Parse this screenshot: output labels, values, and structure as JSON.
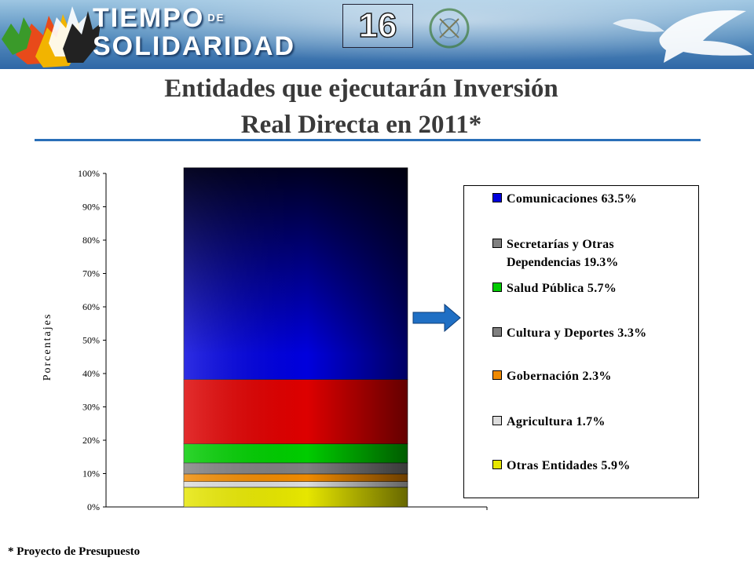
{
  "header": {
    "logo_line1": "TIEMPO",
    "logo_de": "DE",
    "logo_line2": "SOLIDARIDAD",
    "slide_number": "16"
  },
  "title_line1": "Entidades que ejecutarán  Inversión",
  "title_line2": "Real Directa en 2011*",
  "footnote": "* Proyecto de Presupuesto",
  "chart_data": {
    "type": "bar",
    "stacked": true,
    "percent": true,
    "ylabel": "Porcentajes",
    "ylim": [
      0,
      100
    ],
    "yticks": [
      "0%",
      "10%",
      "20%",
      "30%",
      "40%",
      "50%",
      "60%",
      "70%",
      "80%",
      "90%",
      "100%"
    ],
    "categories": [
      ""
    ],
    "series": [
      {
        "name": "Otras Entidades",
        "value": 5.9,
        "color": "#e6e600",
        "legend_text": "Otras Entidades  5.9%"
      },
      {
        "name": "Agricultura",
        "value": 1.7,
        "color": "#dcdcdc",
        "legend_text": "Agricultura  1.7%"
      },
      {
        "name": "Gobernación",
        "value": 2.3,
        "color": "#f08a00",
        "legend_text": "Gobernación  2.3%"
      },
      {
        "name": "Cultura y Deportes",
        "value": 3.3,
        "color": "#808080",
        "legend_text": "Cultura y Deportes  3.3%"
      },
      {
        "name": "Salud Pública",
        "value": 5.7,
        "color": "#00cc00",
        "legend_text": "Salud Pública   5.7%"
      },
      {
        "name": "Secretarías y Otras Dependencias",
        "value": 19.3,
        "color": "#dd0000",
        "legend_swatch": "#808080",
        "legend_text_1": "Secretarías y Otras",
        "legend_text_2": "Dependencias  19.3%"
      },
      {
        "name": "Comunicaciones",
        "value": 63.5,
        "color": "#0000dd",
        "legend_text": "Comunicaciones  63.5%"
      }
    ],
    "legend_position": "right",
    "grid": false
  }
}
